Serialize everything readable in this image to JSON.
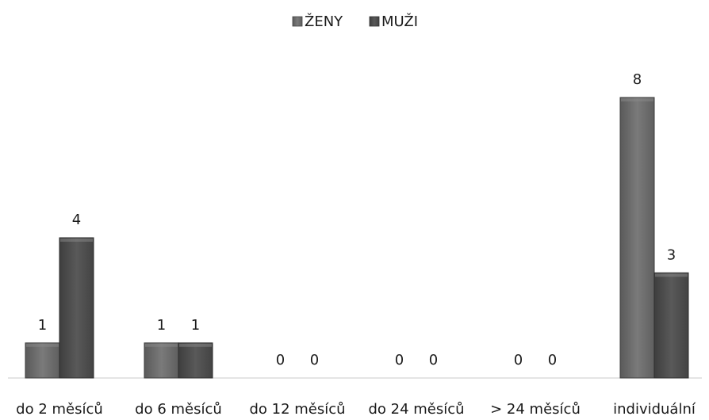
{
  "chart_data": {
    "type": "bar",
    "categories": [
      "do 2 měsíců",
      "do 6 měsíců",
      "do 12 měsíců",
      "do 24 měsíců",
      "> 24 měsíců",
      "individuální"
    ],
    "series": [
      {
        "name": "ŽENY",
        "values": [
          1,
          1,
          0,
          0,
          0,
          8
        ],
        "color": "#6e6e6e"
      },
      {
        "name": "MUŽI",
        "values": [
          4,
          1,
          0,
          0,
          0,
          3
        ],
        "color": "#505050"
      }
    ],
    "ylim": [
      0,
      8
    ],
    "grid": false,
    "legend_position": "top-center",
    "data_labels": true
  }
}
